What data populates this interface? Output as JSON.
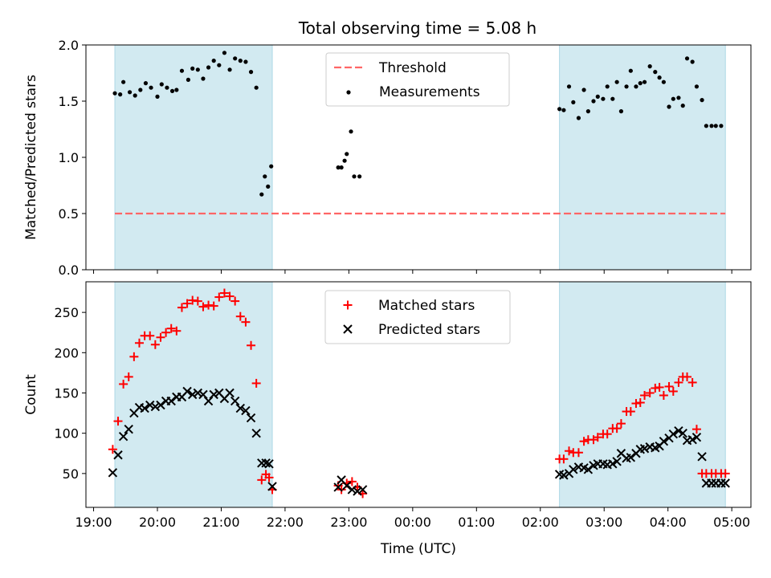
{
  "figure": {
    "title": "Total observing time = 5.08 h"
  },
  "colors": {
    "shade": "#add8e6",
    "threshold": "#ff6666",
    "measurements": "#000000",
    "matched": "#ff0000",
    "predicted": "#000000"
  },
  "chart_data": [
    {
      "type": "scatter",
      "ylabel": "Matched/Predicted stars",
      "ylim": [
        0,
        2.0
      ],
      "yticks": [
        "0.0",
        "0.5",
        "1.0",
        "1.5",
        "2.0"
      ],
      "xlim_hours": [
        18.88,
        29.3
      ],
      "x_tick_hours": [
        19,
        20,
        21,
        22,
        23,
        24,
        25,
        26,
        27,
        28,
        29
      ],
      "shaded_ranges": [
        [
          "19:20",
          "21:48"
        ],
        [
          "02:18",
          "04:54"
        ]
      ],
      "legend_position": "upper center",
      "legend": [
        {
          "key": "threshold",
          "label": "Threshold",
          "marker": "dash"
        },
        {
          "key": "measurements",
          "label": "Measurements",
          "marker": "dot"
        }
      ],
      "threshold": 0.5,
      "threshold_range": [
        "19:20",
        "04:54"
      ],
      "series": [
        {
          "name": "Measurements",
          "x": [
            "19:20",
            "19:25",
            "19:28",
            "19:34",
            "19:39",
            "19:44",
            "19:49",
            "19:54",
            "20:00",
            "20:04",
            "20:09",
            "20:14",
            "20:18",
            "20:23",
            "20:29",
            "20:33",
            "20:38",
            "20:43",
            "20:48",
            "20:53",
            "20:58",
            "21:03",
            "21:08",
            "21:13",
            "21:18",
            "21:23",
            "21:28",
            "21:33",
            "21:38",
            "21:41",
            "21:44",
            "21:47",
            "22:50",
            "22:53",
            "22:56",
            "22:58",
            "23:02",
            "23:05",
            "23:10"
          ],
          "values": [
            1.57,
            1.56,
            1.67,
            1.58,
            1.55,
            1.6,
            1.66,
            1.62,
            1.54,
            1.65,
            1.62,
            1.59,
            1.6,
            1.77,
            1.69,
            1.79,
            1.78,
            1.7,
            1.8,
            1.86,
            1.82,
            1.93,
            1.78,
            1.88,
            1.86,
            1.85,
            1.76,
            1.62,
            0.67,
            0.83,
            0.74,
            0.92,
            0.91,
            0.91,
            0.97,
            1.03,
            1.23,
            0.83,
            0.83
          ]
        },
        {
          "name": "Measurements",
          "x": [
            "02:18",
            "02:22",
            "02:27",
            "02:31",
            "02:36",
            "02:41",
            "02:45",
            "02:50",
            "02:54",
            "02:59",
            "03:03",
            "03:08",
            "03:12",
            "03:16",
            "03:21",
            "03:25",
            "03:30",
            "03:34",
            "03:38",
            "03:43",
            "03:48",
            "03:52",
            "03:56",
            "04:01",
            "04:05",
            "04:10",
            "04:14",
            "04:18",
            "04:23",
            "04:27",
            "04:32",
            "04:36",
            "04:41",
            "04:45",
            "04:50"
          ],
          "values": [
            1.43,
            1.42,
            1.63,
            1.49,
            1.35,
            1.6,
            1.41,
            1.5,
            1.54,
            1.52,
            1.63,
            1.52,
            1.67,
            1.41,
            1.63,
            1.77,
            1.63,
            1.66,
            1.67,
            1.81,
            1.76,
            1.71,
            1.67,
            1.45,
            1.52,
            1.53,
            1.46,
            1.88,
            1.85,
            1.63,
            1.51,
            1.28,
            1.28,
            1.28,
            1.28
          ]
        }
      ]
    },
    {
      "type": "scatter",
      "xlabel": "Time (UTC)",
      "ylabel": "Count",
      "ylim": [
        8,
        288
      ],
      "yticks": [
        "50",
        "100",
        "150",
        "200",
        "250"
      ],
      "xlim_hours": [
        18.88,
        29.3
      ],
      "x_tick_hours": [
        19,
        20,
        21,
        22,
        23,
        24,
        25,
        26,
        27,
        28,
        29
      ],
      "x_tick_labels": [
        "19:00",
        "20:00",
        "21:00",
        "22:00",
        "23:00",
        "00:00",
        "01:00",
        "02:00",
        "03:00",
        "04:00",
        "05:00"
      ],
      "shaded_ranges": [
        [
          "19:20",
          "21:48"
        ],
        [
          "02:18",
          "04:54"
        ]
      ],
      "legend_position": "upper center",
      "legend": [
        {
          "key": "matched",
          "label": "Matched stars",
          "marker": "plus"
        },
        {
          "key": "predicted",
          "label": "Predicted stars",
          "marker": "x"
        }
      ],
      "series": [
        {
          "name": "Matched stars",
          "x": [
            "19:18",
            "19:23",
            "19:28",
            "19:33",
            "19:38",
            "19:43",
            "19:48",
            "19:53",
            "19:58",
            "20:03",
            "20:08",
            "20:13",
            "20:18",
            "20:23",
            "20:28",
            "20:33",
            "20:38",
            "20:43",
            "20:48",
            "20:53",
            "20:58",
            "21:03",
            "21:08",
            "21:13",
            "21:18",
            "21:23",
            "21:28",
            "21:33",
            "21:38",
            "21:42",
            "21:45",
            "21:48",
            "22:50",
            "22:53",
            "22:58",
            "23:03",
            "23:08",
            "23:13",
            "02:18",
            "02:22",
            "02:27",
            "02:31",
            "02:36",
            "02:41",
            "02:45",
            "02:50",
            "02:54",
            "02:59",
            "03:03",
            "03:08",
            "03:12",
            "03:16",
            "03:21",
            "03:25",
            "03:30",
            "03:34",
            "03:38",
            "03:43",
            "03:48",
            "03:52",
            "03:56",
            "04:01",
            "04:05",
            "04:10",
            "04:14",
            "04:18",
            "04:23",
            "04:27",
            "04:32",
            "04:36",
            "04:41",
            "04:45",
            "04:50",
            "04:54"
          ],
          "values": [
            80,
            115,
            161,
            170,
            195,
            212,
            221,
            221,
            210,
            219,
            225,
            230,
            227,
            256,
            261,
            265,
            264,
            257,
            259,
            258,
            269,
            274,
            270,
            264,
            245,
            238,
            209,
            162,
            42,
            49,
            45,
            30,
            35,
            30,
            38,
            40,
            33,
            25,
            68,
            68,
            78,
            76,
            76,
            90,
            92,
            92,
            95,
            99,
            99,
            106,
            106,
            112,
            127,
            127,
            137,
            138,
            147,
            150,
            156,
            157,
            147,
            158,
            152,
            163,
            170,
            170,
            163,
            105,
            50,
            50,
            50,
            50,
            50,
            50
          ]
        },
        {
          "name": "Predicted stars",
          "x": [
            "19:18",
            "19:23",
            "19:28",
            "19:33",
            "19:38",
            "19:43",
            "19:48",
            "19:53",
            "19:58",
            "20:03",
            "20:08",
            "20:13",
            "20:18",
            "20:23",
            "20:28",
            "20:33",
            "20:38",
            "20:43",
            "20:48",
            "20:53",
            "20:58",
            "21:03",
            "21:08",
            "21:13",
            "21:18",
            "21:23",
            "21:28",
            "21:33",
            "21:38",
            "21:42",
            "21:45",
            "21:48",
            "22:50",
            "22:53",
            "22:58",
            "23:03",
            "23:08",
            "23:13",
            "02:18",
            "02:22",
            "02:27",
            "02:31",
            "02:36",
            "02:41",
            "02:45",
            "02:50",
            "02:54",
            "02:59",
            "03:03",
            "03:08",
            "03:12",
            "03:16",
            "03:21",
            "03:25",
            "03:30",
            "03:34",
            "03:38",
            "03:43",
            "03:48",
            "03:52",
            "03:56",
            "04:01",
            "04:05",
            "04:10",
            "04:14",
            "04:18",
            "04:23",
            "04:27",
            "04:32",
            "04:36",
            "04:41",
            "04:45",
            "04:50",
            "04:54"
          ],
          "values": [
            51,
            73,
            96,
            105,
            125,
            132,
            131,
            135,
            133,
            135,
            140,
            140,
            145,
            145,
            152,
            148,
            150,
            148,
            140,
            148,
            150,
            143,
            150,
            140,
            131,
            128,
            119,
            100,
            63,
            63,
            62,
            34,
            33,
            42,
            35,
            30,
            28,
            30,
            49,
            48,
            50,
            55,
            58,
            57,
            55,
            60,
            62,
            62,
            61,
            62,
            65,
            75,
            69,
            70,
            75,
            80,
            81,
            83,
            82,
            84,
            90,
            94,
            99,
            103,
            100,
            91,
            92,
            95,
            71,
            38,
            38,
            38,
            38,
            38
          ]
        }
      ]
    }
  ]
}
